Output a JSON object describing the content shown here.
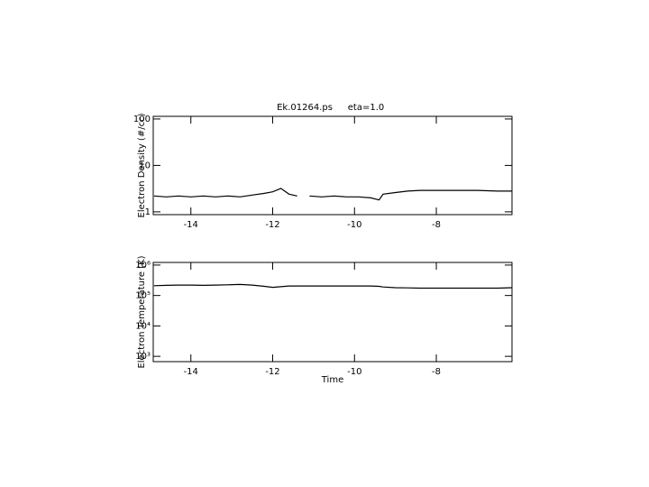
{
  "chart_data": [
    {
      "type": "line",
      "title": "Ek.01264.ps",
      "subtitle": "eta=1.0",
      "ylabel": "Electron Density (#/cc)",
      "log_y": true,
      "color": "#000000",
      "x": [
        -14.9,
        -14.6,
        -14.3,
        -14.0,
        -13.7,
        -13.4,
        -13.1,
        -12.8,
        -12.5,
        -12.2,
        -12.0,
        -11.8,
        -11.6,
        -11.4,
        -11.25,
        -11.1,
        -10.8,
        -10.5,
        -10.2,
        -9.9,
        -9.6,
        -9.4,
        -9.3,
        -9.0,
        -8.7,
        -8.4,
        -8.0,
        -7.5,
        -7.0,
        -6.5,
        -6.15
      ],
      "values": [
        2.2,
        2.1,
        2.2,
        2.1,
        2.2,
        2.1,
        2.2,
        2.1,
        2.3,
        2.5,
        2.7,
        3.2,
        2.4,
        2.2,
        null,
        2.2,
        2.1,
        2.2,
        2.1,
        2.1,
        2.0,
        1.8,
        2.4,
        2.6,
        2.8,
        2.9,
        2.9,
        2.9,
        2.9,
        2.8,
        2.8
      ],
      "xlim": [
        -14.92,
        -6.15
      ],
      "xticks": [
        -14,
        -12,
        -10,
        -8
      ],
      "ylim": [
        0.87,
        114
      ],
      "yticks": [
        1,
        10,
        100
      ]
    },
    {
      "type": "line",
      "xlabel": "Time",
      "ylabel": "Electron Temperature (K)",
      "log_y": true,
      "color": "#000000",
      "x": [
        -14.9,
        -14.6,
        -14.3,
        -14.0,
        -13.7,
        -13.4,
        -13.1,
        -12.8,
        -12.5,
        -12.2,
        -12.0,
        -11.8,
        -11.6,
        -11.4,
        -11.1,
        -10.8,
        -10.5,
        -10.2,
        -9.9,
        -9.6,
        -9.4,
        -9.3,
        -9.0,
        -8.7,
        -8.4,
        -8.0,
        -7.5,
        -7.0,
        -6.5,
        -6.15
      ],
      "values": [
        210000,
        215000,
        220000,
        220000,
        215000,
        220000,
        225000,
        230000,
        220000,
        200000,
        185000,
        195000,
        205000,
        205000,
        205000,
        205000,
        205000,
        205000,
        205000,
        205000,
        200000,
        190000,
        180000,
        178000,
        175000,
        175000,
        175000,
        175000,
        175000,
        180000
      ],
      "xlim": [
        -14.92,
        -6.15
      ],
      "xticks": [
        -14,
        -12,
        -10,
        -8
      ],
      "ylim": [
        670,
        1220000
      ],
      "yticks": [
        {
          "value": 1000,
          "label": "10³"
        },
        {
          "value": 10000,
          "label": "10⁴"
        },
        {
          "value": 100000,
          "label": "10⁵"
        },
        {
          "value": 1000000,
          "label": "10⁶"
        }
      ]
    }
  ]
}
